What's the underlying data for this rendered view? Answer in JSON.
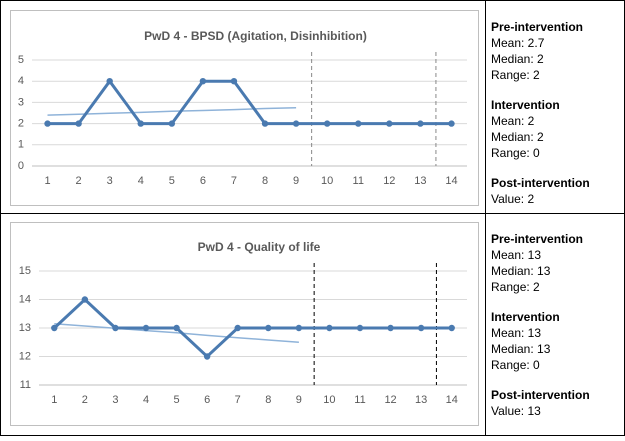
{
  "chart_data": [
    {
      "type": "line",
      "title": "PwD 4 - BPSD (Agitation, Disinhibition)",
      "x": [
        1,
        2,
        3,
        4,
        5,
        6,
        7,
        8,
        9,
        10,
        11,
        12,
        13,
        14
      ],
      "xlim": [
        0.5,
        14.5
      ],
      "xticks": [
        1,
        2,
        3,
        4,
        5,
        6,
        7,
        8,
        9,
        10,
        11,
        12,
        13,
        14
      ],
      "ylim": [
        0,
        5
      ],
      "yticks": [
        0,
        1,
        2,
        3,
        4,
        5
      ],
      "grid": true,
      "series": [
        {
          "color": "#4a7ab0",
          "values": [
            2,
            2,
            4,
            2,
            2,
            4,
            4,
            2,
            2,
            2,
            2,
            2,
            2,
            2
          ]
        }
      ],
      "trend": {
        "color": "#8fb3d9",
        "values": [
          2.4,
          2.44,
          2.49,
          2.53,
          2.58,
          2.62,
          2.66,
          2.71,
          2.75,
          null,
          null,
          null,
          null,
          null
        ]
      },
      "phase_lines": [
        9.5,
        13.5
      ],
      "phase_line_color": "#888888"
    },
    {
      "type": "line",
      "title": "PwD 4 - Quality of life",
      "x": [
        1,
        2,
        3,
        4,
        5,
        6,
        7,
        8,
        9,
        10,
        11,
        12,
        13,
        14
      ],
      "xlim": [
        0.5,
        14.5
      ],
      "xticks": [
        1,
        2,
        3,
        4,
        5,
        6,
        7,
        8,
        9,
        10,
        11,
        12,
        13,
        14
      ],
      "ylim": [
        11,
        15
      ],
      "yticks": [
        11,
        12,
        13,
        14,
        15
      ],
      "grid": true,
      "series": [
        {
          "color": "#4a7ab0",
          "values": [
            13,
            14,
            13,
            13,
            13,
            12,
            13,
            13,
            13,
            13,
            13,
            13,
            13,
            13
          ]
        }
      ],
      "trend": {
        "color": "#8fb3d9",
        "values": [
          13.15,
          13.07,
          12.99,
          12.91,
          12.83,
          12.74,
          12.66,
          12.58,
          12.5,
          null,
          null,
          null,
          null,
          null
        ]
      },
      "phase_lines": [
        9.5,
        13.5
      ],
      "phase_line_color": "#000000"
    }
  ],
  "panels": [
    {
      "sections": [
        {
          "heading": "Pre-intervention",
          "lines": [
            "Mean: 2.7",
            "Median: 2",
            "Range: 2"
          ]
        },
        {
          "heading": "Intervention",
          "lines": [
            "Mean: 2",
            "Median: 2",
            "Range: 0"
          ]
        },
        {
          "heading": "Post-intervention",
          "lines": [
            "Value: 2"
          ]
        }
      ]
    },
    {
      "sections": [
        {
          "heading": "Pre-intervention",
          "lines": [
            "Mean: 13",
            "Median: 13",
            "Range: 2"
          ]
        },
        {
          "heading": "Intervention",
          "lines": [
            "Mean: 13",
            "Median: 13",
            "Range: 0"
          ]
        },
        {
          "heading": "Post-intervention",
          "lines": [
            "Value: 13"
          ]
        }
      ]
    }
  ]
}
